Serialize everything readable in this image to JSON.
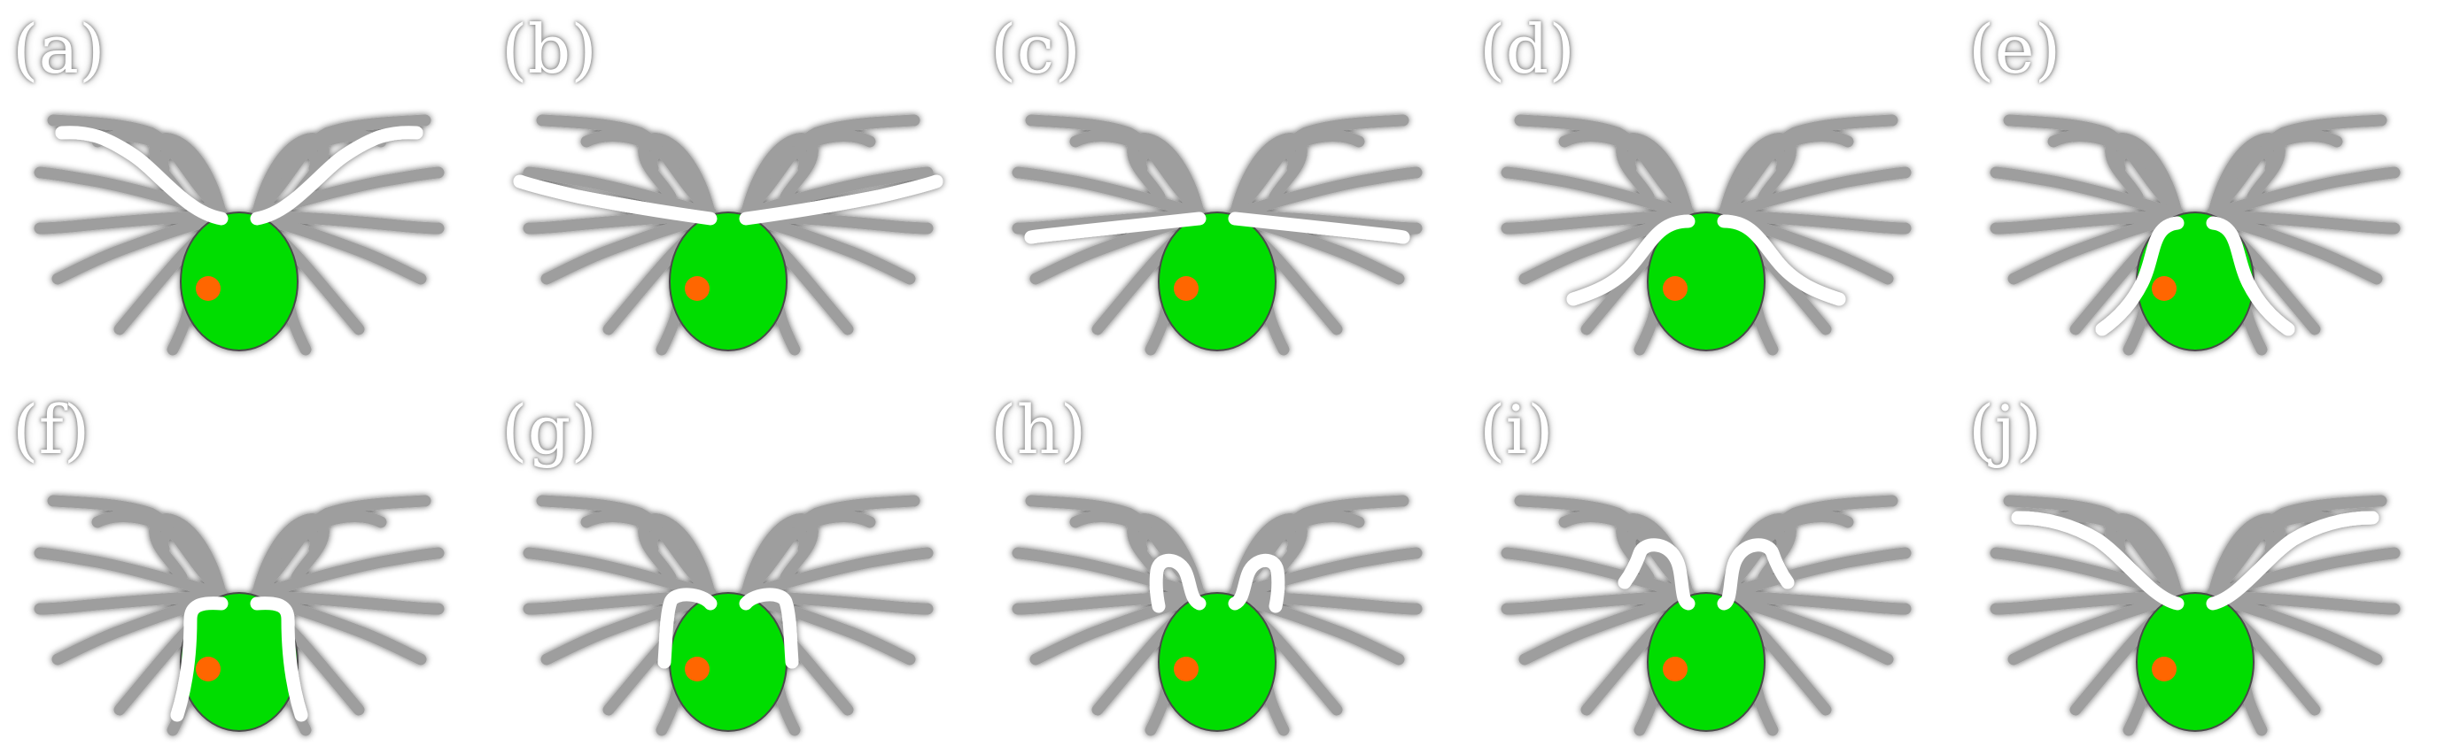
{
  "figure": {
    "colors": {
      "body": "#00dd00",
      "spot": "#ff6600",
      "flagella": "#9e9e9e",
      "highlight": "#ffffff"
    },
    "panels": [
      {
        "label": "(a)",
        "phase": 0
      },
      {
        "label": "(b)",
        "phase": 1
      },
      {
        "label": "(c)",
        "phase": 2
      },
      {
        "label": "(d)",
        "phase": 3
      },
      {
        "label": "(e)",
        "phase": 4
      },
      {
        "label": "(f)",
        "phase": 5
      },
      {
        "label": "(g)",
        "phase": 6
      },
      {
        "label": "(h)",
        "phase": 7
      },
      {
        "label": "(i)",
        "phase": 8
      },
      {
        "label": "(j)",
        "phase": 9
      }
    ]
  }
}
